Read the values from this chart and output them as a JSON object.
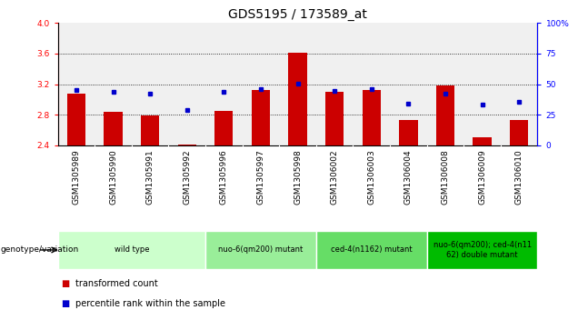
{
  "title": "GDS5195 / 173589_at",
  "samples": [
    "GSM1305989",
    "GSM1305990",
    "GSM1305991",
    "GSM1305992",
    "GSM1305996",
    "GSM1305997",
    "GSM1305998",
    "GSM1306002",
    "GSM1306003",
    "GSM1306004",
    "GSM1306008",
    "GSM1306009",
    "GSM1306010"
  ],
  "red_values": [
    3.08,
    2.84,
    2.79,
    2.41,
    2.85,
    3.12,
    3.61,
    3.1,
    3.12,
    2.73,
    3.18,
    2.5,
    2.73
  ],
  "blue_values": [
    3.12,
    3.1,
    3.08,
    2.86,
    3.1,
    3.13,
    3.21,
    3.11,
    3.13,
    2.94,
    3.07,
    2.93,
    2.97
  ],
  "ylim": [
    2.4,
    4.0
  ],
  "yticks": [
    2.4,
    2.8,
    3.2,
    3.6,
    4.0
  ],
  "y2ticks": [
    0,
    25,
    50,
    75,
    100
  ],
  "y2tick_labels": [
    "0",
    "25",
    "50",
    "75",
    "100%"
  ],
  "bar_color": "#cc0000",
  "dot_color": "#0000cc",
  "bg_color": "#d8d8d8",
  "plot_bg": "#f0f0f0",
  "groups": [
    {
      "label": "wild type",
      "start": 0,
      "end": 4,
      "color": "#ccffcc"
    },
    {
      "label": "nuo-6(qm200) mutant",
      "start": 4,
      "end": 7,
      "color": "#99ee99"
    },
    {
      "label": "ced-4(n1162) mutant",
      "start": 7,
      "end": 10,
      "color": "#66dd66"
    },
    {
      "label": "nuo-6(qm200); ced-4(n11\n62) double mutant",
      "start": 10,
      "end": 13,
      "color": "#00bb00"
    }
  ],
  "legend_label_red": "transformed count",
  "legend_label_blue": "percentile rank within the sample",
  "genotype_label": "genotype/variation",
  "bar_width": 0.5,
  "base": 2.4,
  "title_fontsize": 10,
  "tick_fontsize": 6.5,
  "label_fontsize": 7
}
